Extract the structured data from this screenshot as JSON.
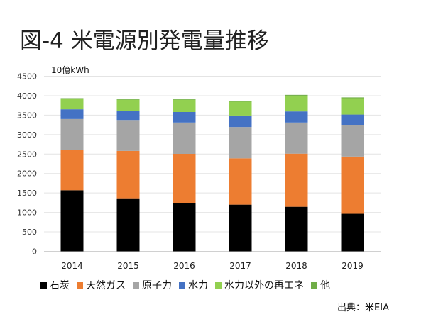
{
  "chart_data": {
    "type": "bar",
    "stacked": true,
    "title": "図-4 米電源別発電量推移",
    "ylabel": "10億kWh",
    "xlabel": "",
    "ylim": [
      0,
      4500
    ],
    "yticks": [
      0,
      500,
      1000,
      1500,
      2000,
      2500,
      3000,
      3500,
      4000,
      4500
    ],
    "grid": true,
    "legend_position": "bottom",
    "categories": [
      "2014",
      "2015",
      "2016",
      "2017",
      "2018",
      "2019"
    ],
    "series": [
      {
        "name": "石炭",
        "color": "#000000",
        "values": [
          1570,
          1345,
          1230,
          1200,
          1145,
          965
        ]
      },
      {
        "name": "天然ガス",
        "color": "#ED7D31",
        "values": [
          1035,
          1235,
          1275,
          1190,
          1365,
          1470
        ]
      },
      {
        "name": "原子力",
        "color": "#A5A5A5",
        "values": [
          795,
          795,
          805,
          805,
          800,
          800
        ]
      },
      {
        "name": "水力",
        "color": "#4472C4",
        "values": [
          250,
          240,
          270,
          295,
          285,
          280
        ]
      },
      {
        "name": "水力以外の再エネ",
        "color": "#92D050",
        "values": [
          260,
          280,
          315,
          355,
          405,
          420
        ]
      },
      {
        "name": "他",
        "color": "#70AD47",
        "values": [
          25,
          30,
          30,
          25,
          20,
          20
        ]
      }
    ],
    "source": "出典：米EIA"
  }
}
